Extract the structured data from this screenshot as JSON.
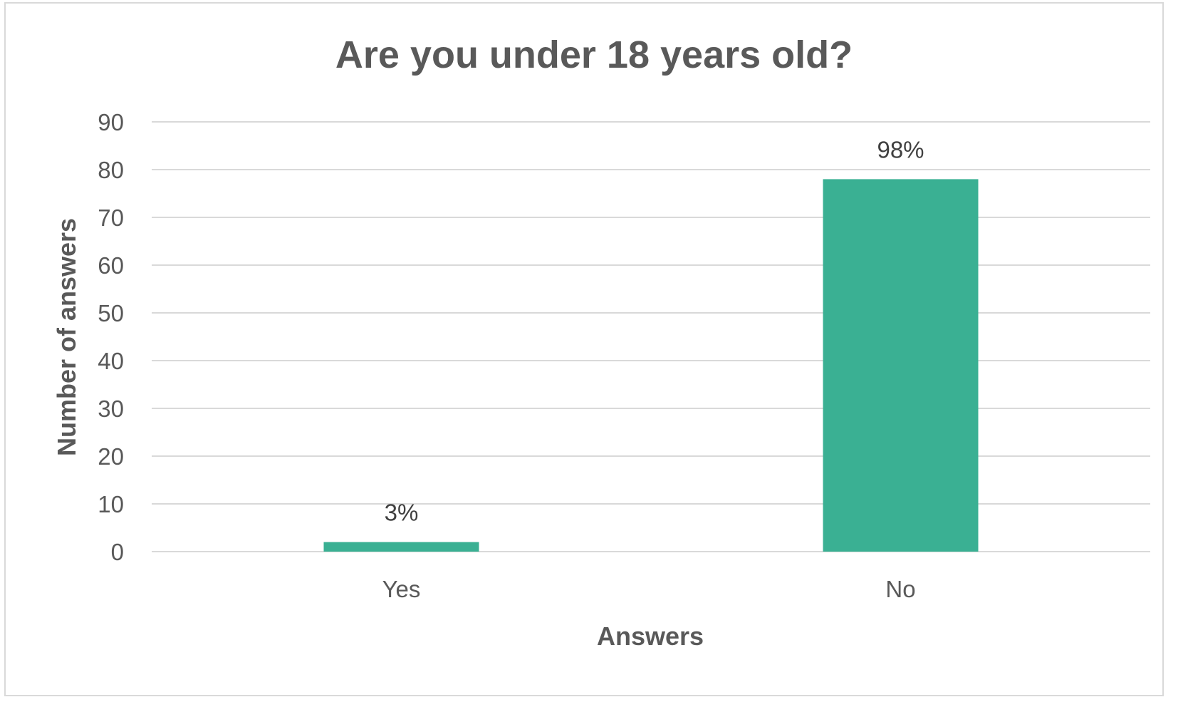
{
  "chart_data": {
    "type": "bar",
    "title": "Are you under 18 years old?",
    "xlabel": "Answers",
    "ylabel": "Number of answers",
    "categories": [
      "Yes",
      "No"
    ],
    "values": [
      2,
      78
    ],
    "data_labels": [
      "3%",
      "98%"
    ],
    "ylim": [
      0,
      90
    ],
    "yticks": [
      0,
      10,
      20,
      30,
      40,
      50,
      60,
      70,
      80,
      90
    ],
    "grid": true,
    "legend": "none",
    "bar_color": "#3AB093"
  }
}
